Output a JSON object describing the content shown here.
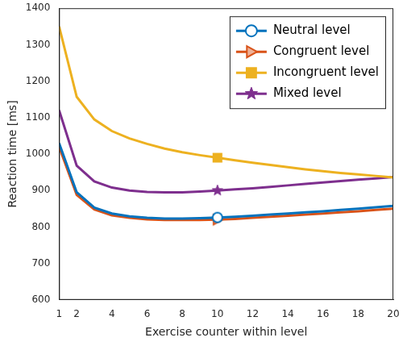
{
  "chart_data": {
    "type": "line",
    "x_label": "Exercise counter within level",
    "y_label": "Reaction time [ms]",
    "x": [
      1,
      2,
      3,
      4,
      5,
      6,
      7,
      8,
      9,
      10,
      11,
      12,
      13,
      14,
      15,
      16,
      17,
      18,
      19,
      20
    ],
    "series": [
      {
        "name": "Neutral level",
        "color": "#0072BD",
        "marker": "circle",
        "values": [
          1030,
          895,
          853,
          837,
          829,
          825,
          823,
          823,
          824,
          826,
          828,
          831,
          834,
          837,
          840,
          843,
          847,
          850,
          854,
          858
        ]
      },
      {
        "name": "Congruent level",
        "color": "#D95319",
        "marker": "triangle",
        "values": [
          1020,
          888,
          848,
          832,
          825,
          821,
          819,
          819,
          819,
          820,
          822,
          825,
          828,
          831,
          834,
          837,
          840,
          843,
          847,
          850
        ]
      },
      {
        "name": "Incongruent level",
        "color": "#EDB120",
        "marker": "square",
        "values": [
          1350,
          1157,
          1095,
          1063,
          1043,
          1028,
          1015,
          1005,
          997,
          990,
          983,
          976,
          970,
          964,
          958,
          953,
          948,
          944,
          940,
          936
        ]
      },
      {
        "name": "Mixed level",
        "color": "#7E2F8E",
        "marker": "star",
        "values": [
          1120,
          968,
          925,
          908,
          900,
          896,
          895,
          895,
          897,
          900,
          903,
          906,
          910,
          914,
          918,
          922,
          926,
          930,
          933,
          937
        ]
      }
    ],
    "xlim": [
      1,
      20
    ],
    "xticks": [
      1,
      2,
      4,
      6,
      8,
      10,
      12,
      14,
      16,
      18,
      20
    ],
    "ylim": [
      600,
      1400
    ],
    "yticks": [
      600,
      700,
      800,
      900,
      1000,
      1100,
      1200,
      1300,
      1400
    ],
    "grid": false,
    "legend": "upper right"
  }
}
